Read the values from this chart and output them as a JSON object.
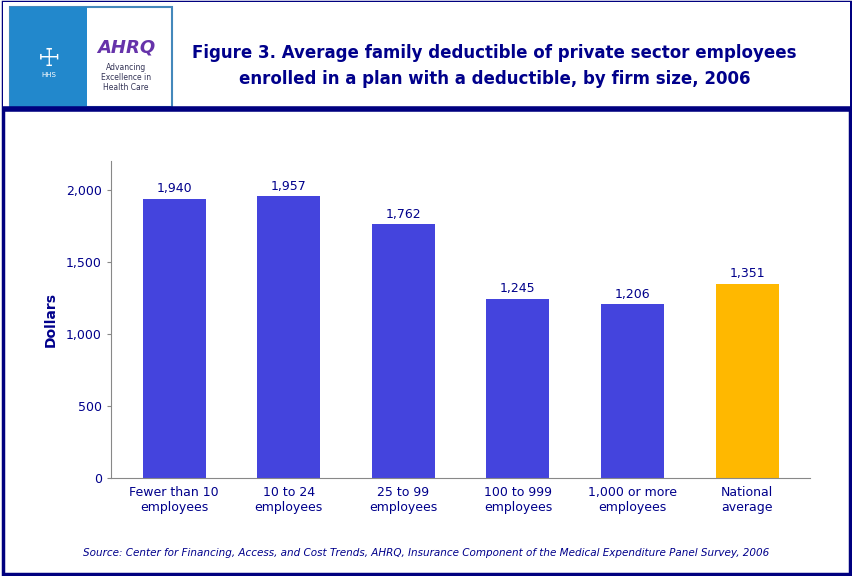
{
  "title_line1": "Figure 3. Average family deductible of private sector employees",
  "title_line2": "enrolled in a plan with a deductible, by firm size, 2006",
  "categories": [
    "Fewer than 10\nemployees",
    "10 to 24\nemployees",
    "25 to 99\nemployees",
    "100 to 999\nemployees",
    "1,000 or more\nemployees",
    "National\naverage"
  ],
  "values": [
    1940,
    1957,
    1762,
    1245,
    1206,
    1351
  ],
  "bar_colors": [
    "#4444DD",
    "#4444DD",
    "#4444DD",
    "#4444DD",
    "#4444DD",
    "#FFB800"
  ],
  "value_labels": [
    "1,940",
    "1,957",
    "1,762",
    "1,245",
    "1,206",
    "1,351"
  ],
  "ylabel": "Dollars",
  "ylim": [
    0,
    2200
  ],
  "yticks": [
    0,
    500,
    1000,
    1500,
    2000
  ],
  "ytick_labels": [
    "0",
    "500",
    "1,000",
    "1,500",
    "2,000"
  ],
  "source_text": "Source: Center for Financing, Access, and Cost Trends, AHRQ, Insurance Component of the Medical Expenditure Panel Survey, 2006",
  "background_color": "#FFFFFF",
  "outer_border_color": "#00007F",
  "title_color": "#00008B",
  "axis_label_color": "#00008B",
  "tick_label_color": "#00008B",
  "value_label_color": "#00008B",
  "category_label_color": "#00008B",
  "source_color": "#00008B",
  "separator_color": "#00007F",
  "header_bg": "#FFFFFF",
  "logo_left_bg": "#2288CC",
  "logo_right_bg": "#FFFFFF",
  "logo_border_color": "#4488BB",
  "ahrq_text_color": "#663399",
  "ahrq_sub_color": "#333333"
}
